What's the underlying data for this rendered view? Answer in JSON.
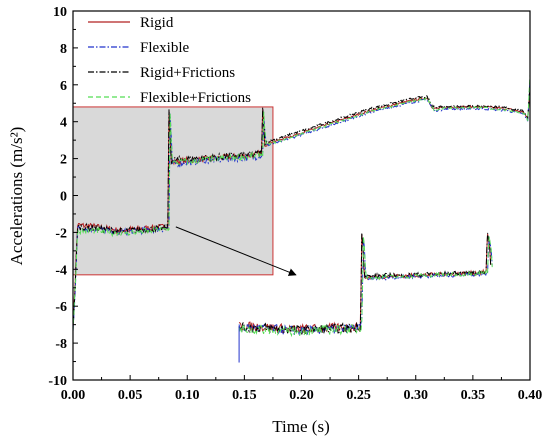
{
  "chart_data": {
    "type": "line",
    "title": "",
    "xlabel": "Time (s)",
    "ylabel": "Accelerations (m/s²)",
    "xlim": [
      0.0,
      0.4
    ],
    "ylim": [
      -10,
      10
    ],
    "x_ticks": [
      "0.00",
      "0.05",
      "0.10",
      "0.15",
      "0.20",
      "0.25",
      "0.30",
      "0.35",
      "0.40"
    ],
    "y_ticks": [
      "10",
      "8",
      "6",
      "4",
      "2",
      "0",
      "-2",
      "-4",
      "-6",
      "-8",
      "-10"
    ],
    "grid": false,
    "legend_position": "top-left",
    "series": [
      {
        "name": "Rigid",
        "color": "#b22222",
        "style": "solid",
        "points": [
          [
            0.0,
            -7.0
          ],
          [
            0.002,
            -4.5
          ],
          [
            0.004,
            -1.6
          ],
          [
            0.02,
            -1.7
          ],
          [
            0.04,
            -1.9
          ],
          [
            0.06,
            -1.8
          ],
          [
            0.08,
            -1.7
          ],
          [
            0.083,
            -1.6
          ],
          [
            0.084,
            4.6
          ],
          [
            0.086,
            1.8
          ],
          [
            0.1,
            1.9
          ],
          [
            0.12,
            2.0
          ],
          [
            0.14,
            2.1
          ],
          [
            0.16,
            2.2
          ],
          [
            0.165,
            2.3
          ],
          [
            0.166,
            4.6
          ],
          [
            0.168,
            2.8
          ],
          [
            0.18,
            3.0
          ],
          [
            0.2,
            3.4
          ],
          [
            0.22,
            3.8
          ],
          [
            0.24,
            4.2
          ],
          [
            0.26,
            4.6
          ],
          [
            0.28,
            4.9
          ],
          [
            0.3,
            5.2
          ],
          [
            0.31,
            5.3
          ],
          [
            0.315,
            4.7
          ],
          [
            0.33,
            4.8
          ],
          [
            0.36,
            4.8
          ],
          [
            0.38,
            4.7
          ],
          [
            0.395,
            4.5
          ],
          [
            0.398,
            4.1
          ],
          [
            0.4,
            5.9
          ]
        ]
      },
      {
        "name": "Flexible",
        "color": "#2233cc",
        "style": "dashdot",
        "points": [
          [
            0.0,
            -7.4
          ],
          [
            0.002,
            -5.0
          ],
          [
            0.004,
            -1.8
          ],
          [
            0.02,
            -1.8
          ],
          [
            0.04,
            -2.0
          ],
          [
            0.06,
            -1.9
          ],
          [
            0.08,
            -1.8
          ],
          [
            0.084,
            -1.7
          ],
          [
            0.085,
            4.3
          ],
          [
            0.087,
            1.7
          ],
          [
            0.1,
            1.8
          ],
          [
            0.12,
            1.9
          ],
          [
            0.14,
            2.0
          ],
          [
            0.16,
            2.1
          ],
          [
            0.166,
            2.2
          ],
          [
            0.167,
            4.3
          ],
          [
            0.169,
            2.7
          ],
          [
            0.18,
            2.9
          ],
          [
            0.2,
            3.3
          ],
          [
            0.22,
            3.7
          ],
          [
            0.24,
            4.1
          ],
          [
            0.26,
            4.5
          ],
          [
            0.28,
            4.8
          ],
          [
            0.3,
            5.1
          ],
          [
            0.31,
            5.2
          ],
          [
            0.316,
            4.6
          ],
          [
            0.33,
            4.7
          ],
          [
            0.36,
            4.7
          ],
          [
            0.38,
            4.6
          ],
          [
            0.395,
            4.4
          ],
          [
            0.398,
            4.0
          ],
          [
            0.4,
            6.3
          ]
        ]
      },
      {
        "name": "Rigid+Frictions",
        "color": "#000000",
        "style": "dashdot",
        "points": [
          [
            0.0,
            -7.2
          ],
          [
            0.002,
            -4.8
          ],
          [
            0.004,
            -1.7
          ],
          [
            0.02,
            -1.75
          ],
          [
            0.04,
            -1.95
          ],
          [
            0.06,
            -1.85
          ],
          [
            0.08,
            -1.75
          ],
          [
            0.083,
            -1.65
          ],
          [
            0.084,
            4.7
          ],
          [
            0.086,
            1.9
          ],
          [
            0.1,
            2.0
          ],
          [
            0.12,
            2.05
          ],
          [
            0.14,
            2.15
          ],
          [
            0.16,
            2.25
          ],
          [
            0.165,
            2.3
          ],
          [
            0.166,
            4.7
          ],
          [
            0.168,
            2.9
          ],
          [
            0.18,
            3.1
          ],
          [
            0.2,
            3.5
          ],
          [
            0.22,
            3.9
          ],
          [
            0.24,
            4.3
          ],
          [
            0.26,
            4.7
          ],
          [
            0.28,
            5.0
          ],
          [
            0.3,
            5.3
          ],
          [
            0.31,
            5.35
          ],
          [
            0.315,
            4.8
          ],
          [
            0.33,
            4.85
          ],
          [
            0.36,
            4.85
          ],
          [
            0.38,
            4.75
          ],
          [
            0.395,
            4.55
          ],
          [
            0.398,
            4.2
          ],
          [
            0.4,
            6.0
          ]
        ]
      },
      {
        "name": "Flexible+Frictions",
        "color": "#55dd55",
        "style": "dashed",
        "points": [
          [
            0.0,
            -7.3
          ],
          [
            0.002,
            -4.9
          ],
          [
            0.004,
            -1.9
          ],
          [
            0.02,
            -1.9
          ],
          [
            0.04,
            -2.05
          ],
          [
            0.06,
            -1.95
          ],
          [
            0.08,
            -1.85
          ],
          [
            0.084,
            -1.75
          ],
          [
            0.085,
            4.4
          ],
          [
            0.087,
            1.75
          ],
          [
            0.1,
            1.85
          ],
          [
            0.12,
            1.95
          ],
          [
            0.14,
            2.05
          ],
          [
            0.16,
            2.15
          ],
          [
            0.166,
            2.25
          ],
          [
            0.167,
            4.4
          ],
          [
            0.169,
            2.75
          ],
          [
            0.18,
            2.95
          ],
          [
            0.2,
            3.35
          ],
          [
            0.22,
            3.75
          ],
          [
            0.24,
            4.15
          ],
          [
            0.26,
            4.55
          ],
          [
            0.28,
            4.85
          ],
          [
            0.3,
            5.15
          ],
          [
            0.31,
            5.25
          ],
          [
            0.316,
            4.65
          ],
          [
            0.33,
            4.75
          ],
          [
            0.36,
            4.75
          ],
          [
            0.38,
            4.65
          ],
          [
            0.395,
            4.45
          ],
          [
            0.398,
            4.05
          ],
          [
            0.4,
            6.5
          ]
        ]
      }
    ],
    "inset": {
      "source_region_x": [
        0.0,
        0.175
      ],
      "source_region_y": [
        -4.3,
        4.8
      ],
      "region_fill": "#d9d9d9",
      "region_border": "#cc3333",
      "arrow_from": [
        0.09,
        -1.7
      ],
      "arrow_to": [
        0.195,
        -4.3
      ],
      "display_region_x": [
        0.14,
        0.375
      ],
      "display_region_y": [
        -9.5,
        2.0
      ]
    }
  }
}
